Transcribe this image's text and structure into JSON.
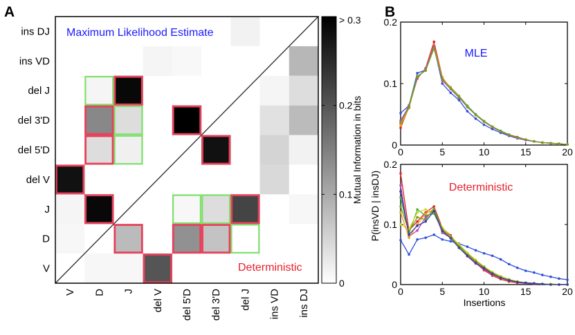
{
  "chart_data": [
    {
      "type": "heatmap",
      "panel_label": "A",
      "title_upper": "Maximum Likelihood Estimate",
      "title_lower": "Deterministic",
      "row_labels": [
        "ins DJ",
        "ins VD",
        "del J",
        "del 3'D",
        "del 5'D",
        "del V",
        "J",
        "D",
        "V"
      ],
      "col_labels": [
        "V",
        "D",
        "J",
        "del V",
        "del 5'D",
        "del 3'D",
        "del J",
        "ins VD",
        "ins DJ"
      ],
      "colorbar": {
        "label": "Mutual Information in bits",
        "ticks": [
          "0",
          "0.1",
          "0.2",
          "> 0.3"
        ],
        "range": [
          0,
          0.3
        ]
      },
      "cells": [
        {
          "r": 0,
          "c": 6,
          "v": 0.015
        },
        {
          "r": 1,
          "c": 3,
          "v": 0.012
        },
        {
          "r": 1,
          "c": 4,
          "v": 0.008
        },
        {
          "r": 1,
          "c": 8,
          "v": 0.085
        },
        {
          "r": 2,
          "c": 1,
          "v": 0.012
        },
        {
          "r": 2,
          "c": 2,
          "v": 0.29
        },
        {
          "r": 2,
          "c": 7,
          "v": 0.012
        },
        {
          "r": 2,
          "c": 8,
          "v": 0.04
        },
        {
          "r": 3,
          "c": 1,
          "v": 0.14
        },
        {
          "r": 3,
          "c": 2,
          "v": 0.04
        },
        {
          "r": 3,
          "c": 4,
          "v": 0.3
        },
        {
          "r": 3,
          "c": 7,
          "v": 0.035
        },
        {
          "r": 3,
          "c": 8,
          "v": 0.08
        },
        {
          "r": 4,
          "c": 1,
          "v": 0.04
        },
        {
          "r": 4,
          "c": 2,
          "v": 0.018
        },
        {
          "r": 4,
          "c": 5,
          "v": 0.28
        },
        {
          "r": 4,
          "c": 7,
          "v": 0.05
        },
        {
          "r": 4,
          "c": 8,
          "v": 0.015
        },
        {
          "r": 5,
          "c": 0,
          "v": 0.28
        },
        {
          "r": 5,
          "c": 7,
          "v": 0.045
        },
        {
          "r": 6,
          "c": 0,
          "v": 0.012
        },
        {
          "r": 6,
          "c": 1,
          "v": 0.29
        },
        {
          "r": 6,
          "c": 4,
          "v": 0.01
        },
        {
          "r": 6,
          "c": 5,
          "v": 0.04
        },
        {
          "r": 6,
          "c": 6,
          "v": 0.22
        },
        {
          "r": 6,
          "c": 8,
          "v": 0.01
        },
        {
          "r": 7,
          "c": 0,
          "v": 0.01
        },
        {
          "r": 7,
          "c": 2,
          "v": 0.08
        },
        {
          "r": 7,
          "c": 4,
          "v": 0.13
        },
        {
          "r": 7,
          "c": 5,
          "v": 0.07
        },
        {
          "r": 8,
          "c": 1,
          "v": 0.01
        },
        {
          "r": 8,
          "c": 2,
          "v": 0.01
        },
        {
          "r": 8,
          "c": 3,
          "v": 0.2
        }
      ],
      "red_boxes": [
        [
          2,
          2
        ],
        [
          3,
          1
        ],
        [
          3,
          4
        ],
        [
          4,
          1
        ],
        [
          4,
          5
        ],
        [
          5,
          0
        ],
        [
          6,
          1
        ],
        [
          6,
          6
        ],
        [
          7,
          2
        ],
        [
          7,
          4
        ],
        [
          7,
          5
        ],
        [
          8,
          3
        ]
      ],
      "green_boxes": [
        [
          2,
          1
        ],
        [
          3,
          2
        ],
        [
          4,
          2
        ],
        [
          6,
          4
        ],
        [
          6,
          5
        ],
        [
          7,
          6
        ]
      ]
    },
    {
      "type": "line",
      "panel_label": "B",
      "title": "MLE",
      "xlim": [
        0,
        20
      ],
      "ylim": [
        0,
        0.2
      ],
      "xticks": [
        0,
        5,
        10,
        15,
        20
      ],
      "yticks": [
        "0",
        "0.1",
        "0.2"
      ],
      "x": [
        0,
        1,
        2,
        3,
        4,
        5,
        6,
        7,
        8,
        9,
        10,
        11,
        12,
        13,
        14,
        15,
        16,
        17,
        18,
        19,
        20
      ],
      "series": [
        {
          "name": "blue",
          "color": "#2f4fd8",
          "values": [
            0.052,
            0.064,
            0.117,
            0.122,
            0.16,
            0.1,
            0.085,
            0.073,
            0.055,
            0.043,
            0.033,
            0.026,
            0.02,
            0.015,
            0.011,
            0.008,
            0.006,
            0.004,
            0.003,
            0.002,
            0.001
          ]
        },
        {
          "name": "red",
          "color": "#e02020",
          "values": [
            0.028,
            0.062,
            0.108,
            0.125,
            0.168,
            0.11,
            0.092,
            0.078,
            0.063,
            0.05,
            0.039,
            0.03,
            0.023,
            0.017,
            0.013,
            0.009,
            0.006,
            0.004,
            0.003,
            0.002,
            0.001
          ]
        },
        {
          "name": "green",
          "color": "#3cb43c",
          "values": [
            0.035,
            0.065,
            0.112,
            0.121,
            0.157,
            0.108,
            0.094,
            0.08,
            0.064,
            0.05,
            0.039,
            0.03,
            0.023,
            0.017,
            0.012,
            0.009,
            0.006,
            0.004,
            0.003,
            0.002,
            0.001
          ]
        },
        {
          "name": "orange",
          "color": "#e8a020",
          "values": [
            0.032,
            0.06,
            0.11,
            0.123,
            0.163,
            0.109,
            0.093,
            0.079,
            0.062,
            0.049,
            0.038,
            0.03,
            0.022,
            0.016,
            0.012,
            0.009,
            0.006,
            0.004,
            0.003,
            0.002,
            0.001
          ]
        },
        {
          "name": "magenta",
          "color": "#c040c0",
          "values": [
            0.04,
            0.063,
            0.109,
            0.124,
            0.161,
            0.105,
            0.091,
            0.077,
            0.062,
            0.049,
            0.038,
            0.029,
            0.022,
            0.016,
            0.012,
            0.008,
            0.006,
            0.004,
            0.003,
            0.002,
            0.001
          ]
        },
        {
          "name": "olive",
          "color": "#7a9a20",
          "values": [
            0.037,
            0.061,
            0.111,
            0.122,
            0.158,
            0.107,
            0.092,
            0.078,
            0.063,
            0.049,
            0.038,
            0.03,
            0.022,
            0.017,
            0.012,
            0.009,
            0.006,
            0.004,
            0.003,
            0.002,
            0.001
          ]
        }
      ]
    },
    {
      "type": "line",
      "title": "Deterministic",
      "xlabel": "Insertions",
      "ylabel": "P(insVD | insDJ)",
      "xlim": [
        0,
        20
      ],
      "ylim": [
        0,
        0.2
      ],
      "xticks": [
        0,
        5,
        10,
        15,
        20
      ],
      "yticks": [
        "0",
        "0.1",
        "0.2"
      ],
      "x": [
        0,
        1,
        2,
        3,
        4,
        5,
        6,
        7,
        8,
        9,
        10,
        11,
        12,
        13,
        14,
        15,
        16,
        17,
        18,
        19,
        20
      ],
      "series": [
        {
          "name": "blue",
          "color": "#2f4fd8",
          "values": [
            0.074,
            0.05,
            0.075,
            0.078,
            0.083,
            0.075,
            0.072,
            0.068,
            0.063,
            0.057,
            0.052,
            0.048,
            0.042,
            0.034,
            0.028,
            0.023,
            0.02,
            0.016,
            0.013,
            0.01,
            0.008
          ]
        },
        {
          "name": "red",
          "color": "#e02020",
          "values": [
            0.185,
            0.09,
            0.105,
            0.12,
            0.13,
            0.094,
            0.082,
            0.064,
            0.05,
            0.036,
            0.024,
            0.015,
            0.009,
            0.005,
            0.003,
            0.002,
            0.001,
            0.001,
            0.001,
            0,
            0
          ]
        },
        {
          "name": "green",
          "color": "#3cb43c",
          "values": [
            0.145,
            0.085,
            0.125,
            0.115,
            0.118,
            0.09,
            0.08,
            0.065,
            0.052,
            0.04,
            0.03,
            0.02,
            0.013,
            0.008,
            0.005,
            0.003,
            0.002,
            0.001,
            0.001,
            0,
            0
          ]
        },
        {
          "name": "yellow",
          "color": "#d8d020",
          "values": [
            0.1,
            0.092,
            0.12,
            0.125,
            0.12,
            0.095,
            0.08,
            0.067,
            0.053,
            0.041,
            0.03,
            0.021,
            0.014,
            0.009,
            0.005,
            0.003,
            0.002,
            0.001,
            0.001,
            0,
            0
          ]
        },
        {
          "name": "magenta",
          "color": "#c040c0",
          "values": [
            0.165,
            0.08,
            0.09,
            0.112,
            0.123,
            0.086,
            0.078,
            0.062,
            0.047,
            0.035,
            0.026,
            0.017,
            0.011,
            0.007,
            0.004,
            0.002,
            0.001,
            0.001,
            0,
            0,
            0
          ]
        },
        {
          "name": "orange",
          "color": "#e8a020",
          "values": [
            0.12,
            0.078,
            0.1,
            0.118,
            0.125,
            0.088,
            0.078,
            0.063,
            0.049,
            0.038,
            0.028,
            0.018,
            0.012,
            0.007,
            0.004,
            0.003,
            0.002,
            0.001,
            0,
            0,
            0
          ]
        },
        {
          "name": "olive",
          "color": "#7a9a20",
          "values": [
            0.13,
            0.088,
            0.112,
            0.108,
            0.127,
            0.092,
            0.079,
            0.064,
            0.05,
            0.039,
            0.029,
            0.019,
            0.012,
            0.008,
            0.005,
            0.003,
            0.002,
            0.001,
            0,
            0,
            0
          ]
        },
        {
          "name": "navy",
          "color": "#3040a0",
          "values": [
            0.155,
            0.083,
            0.098,
            0.105,
            0.122,
            0.089,
            0.077,
            0.061,
            0.048,
            0.036,
            0.027,
            0.018,
            0.011,
            0.007,
            0.004,
            0.003,
            0.002,
            0.001,
            0,
            0,
            0
          ]
        }
      ]
    }
  ]
}
